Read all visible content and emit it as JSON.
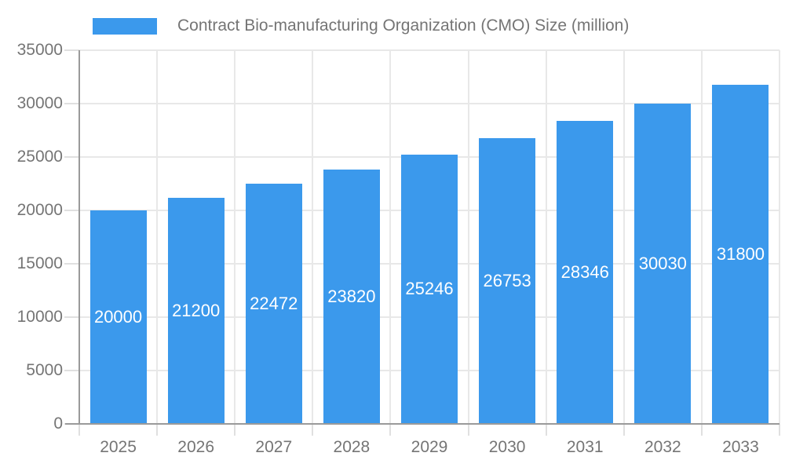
{
  "legend": {
    "label": "Contract Bio-manufacturing Organization (CMO) Size (million)"
  },
  "colors": {
    "bar": "#3b99ec",
    "label_text": "#757575",
    "value_label_text": "#ffffff",
    "axis_line": "#9a9a9a",
    "gridline": "#e8e8e8",
    "tickmark": "#e0e0e0",
    "background": "#ffffff"
  },
  "chart_data": {
    "type": "bar",
    "title": "Contract Bio-manufacturing Organization (CMO) Size (million)",
    "categories": [
      "2025",
      "2026",
      "2027",
      "2028",
      "2029",
      "2030",
      "2031",
      "2032",
      "2033"
    ],
    "values": [
      20000,
      21200,
      22472,
      23820,
      25246,
      26753,
      28346,
      30030,
      31800
    ],
    "value_labels": [
      "20000",
      "21200",
      "22472",
      "23820",
      "25246",
      "26753",
      "28346",
      "30030",
      "31800"
    ],
    "yticks": [
      0,
      5000,
      10000,
      15000,
      20000,
      25000,
      30000,
      35000
    ],
    "ylim": [
      0,
      35000
    ],
    "xlabel": "",
    "ylabel": "",
    "grid": true,
    "legend_position": "top",
    "value_label_position": "inside-center"
  }
}
